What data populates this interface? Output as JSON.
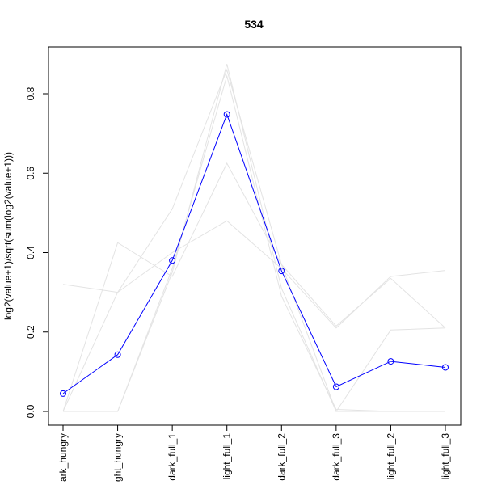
{
  "chart_data": {
    "type": "line",
    "title": "534",
    "xlabel": "",
    "ylabel": "log2(value+1)/sqrt(sum(log2(value+1)))",
    "categories": [
      "dark_hungry",
      "light_hungry",
      "dark_full_1",
      "light_full_1",
      "dark_full_2",
      "dark_full_3",
      "light_full_2",
      "light_full_3"
    ],
    "category_labels_visible": [
      "ark_hungry",
      "ght_hungry",
      "dark_full_1",
      "light_full_1",
      "dark_full_2",
      "dark_full_3",
      "light_full_2",
      "light_full_3"
    ],
    "ylim": [
      -0.03,
      0.9
    ],
    "yticks": [
      "0.0",
      "0.2",
      "0.4",
      "0.6",
      "0.8"
    ],
    "ytick_values": [
      0.0,
      0.2,
      0.4,
      0.6,
      0.8
    ],
    "highlight_series": {
      "color": "#0000ff",
      "marker": "open-circle",
      "values": [
        0.045,
        0.143,
        0.38,
        0.748,
        0.354,
        0.062,
        0.126,
        0.111
      ]
    },
    "background_series_color": "#e3e3e3",
    "background_series": [
      {
        "values": [
          0.32,
          0.3,
          0.4,
          0.48,
          0.36,
          0.21,
          0.34,
          0.355
        ]
      },
      {
        "values": [
          0.0,
          0.425,
          0.34,
          0.625,
          0.37,
          0.215,
          0.335,
          0.21
        ]
      },
      {
        "values": [
          0.0,
          0.3,
          0.51,
          0.86,
          0.37,
          0.0,
          0.205,
          0.21
        ]
      },
      {
        "values": [
          0.0,
          0.0,
          0.35,
          0.875,
          0.31,
          0.0,
          0.0,
          0.0
        ]
      },
      {
        "values": [
          0.0,
          0.0,
          0.36,
          0.845,
          0.29,
          0.005,
          0.0,
          0.0
        ]
      }
    ]
  }
}
